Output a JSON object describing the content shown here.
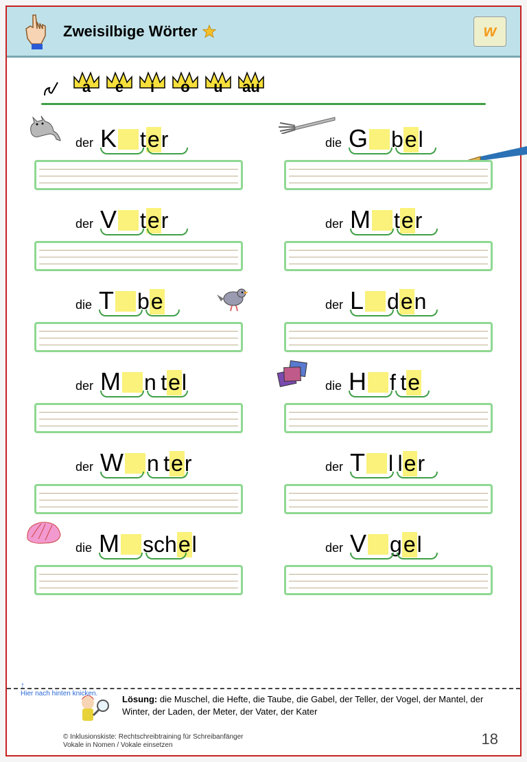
{
  "header": {
    "title": "Zweisilbige Wörter",
    "logo_text": "w",
    "star_color": "#f2c029",
    "bg_color": "#bfe2ea"
  },
  "vowels": [
    "a",
    "e",
    "i",
    "o",
    "u",
    "au"
  ],
  "crown": {
    "fill": "#f7df3b",
    "stroke": "#000000"
  },
  "divider_color": "#3f9f46",
  "exercises": [
    {
      "article": "der",
      "pre": "K",
      "mid1": "",
      "post": "t",
      "mid2": "e",
      "end": "r",
      "icon": "cat",
      "icon_pos": "top-left"
    },
    {
      "article": "die",
      "pre": "G",
      "mid1": "",
      "post": "b",
      "mid2": "e",
      "end": "l",
      "icon": "fork",
      "icon_pos": "top-left"
    },
    {
      "article": "der",
      "pre": "V",
      "mid1": "",
      "post": "t",
      "mid2": "e",
      "end": "r"
    },
    {
      "article": "der",
      "pre": "M",
      "mid1": "",
      "post": "t",
      "mid2": "e",
      "end": "r"
    },
    {
      "article": "die",
      "pre": "T",
      "mid1": "",
      "post": "b",
      "mid2": "e",
      "end": "",
      "icon": "dove",
      "icon_pos": "right"
    },
    {
      "article": "der",
      "pre": "L",
      "mid1": "",
      "post": "d",
      "mid2": "e",
      "end": "n"
    },
    {
      "article": "der",
      "pre": "M",
      "mid1": "",
      "post": "n t",
      "mid2": "e",
      "end": "l"
    },
    {
      "article": "die",
      "pre": "H",
      "mid1": "",
      "post": "f t",
      "mid2": "e",
      "end": "",
      "icon": "books",
      "icon_pos": "top-left"
    },
    {
      "article": "der",
      "pre": "W",
      "mid1": "",
      "post": "n t",
      "mid2": "e",
      "end": "r"
    },
    {
      "article": "der",
      "pre": "T",
      "mid1": "",
      "post": "l l",
      "mid2": "e",
      "end": "r"
    },
    {
      "article": "die",
      "pre": "M",
      "mid1": "",
      "post": "sch",
      "mid2": "e",
      "end": "l",
      "icon": "shell",
      "icon_pos": "top-left"
    },
    {
      "article": "der",
      "pre": "V",
      "mid1": "",
      "post": "g",
      "mid2": "e",
      "end": "l"
    }
  ],
  "writing_box": {
    "border": "#8fd892",
    "line": "#bfb090"
  },
  "highlight": "#faf27a",
  "fold_hint": "Hier nach hinten knicken.",
  "solution": {
    "label": "Lösung:",
    "text": "die Muschel, die Hefte, die Taube, die Gabel, der Teller, der Vogel, der Mantel, der Winter, der Laden, der Meter, der Vater, der Kater"
  },
  "copyright": {
    "line1": "© Inklusionskiste: Rechtschreibtraining für Schreibanfänger",
    "line2": "Vokale in Nomen / Vokale einsetzen"
  },
  "page_number": "18"
}
